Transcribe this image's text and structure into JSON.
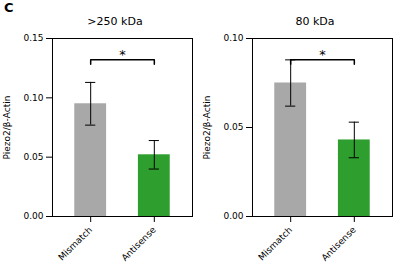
{
  "title": "C",
  "chart_data": [
    {
      "type": "bar",
      "title": ">250 kDa",
      "categories": [
        "Mismatch",
        "Antisense"
      ],
      "values": [
        0.095,
        0.052
      ],
      "errors": [
        0.018,
        0.012
      ],
      "colors": [
        "#a8a8a8",
        "#2e9e2e"
      ],
      "ylim": [
        0.0,
        0.15
      ],
      "yticks": [
        {
          "value": 0,
          "label": "0.00"
        },
        0.05,
        {
          "value": 0.1,
          "label": "0.10"
        },
        0.15
      ],
      "ylabel": "Piezo2/β-Actin",
      "annotations": [
        {
          "text": "*",
          "y": 0.132
        }
      ]
    },
    {
      "type": "bar",
      "title": "80 kDa",
      "categories": [
        "Mismatch",
        "Antisense"
      ],
      "values": [
        0.075,
        0.043
      ],
      "errors": [
        0.013,
        0.01
      ],
      "colors": [
        "#a8a8a8",
        "#2e9e2e"
      ],
      "ylim": [
        0.0,
        0.1
      ],
      "yticks": [
        {
          "value": 0,
          "label": "0.00"
        },
        0.05,
        {
          "value": 0.1,
          "label": "0.10"
        }
      ],
      "ylabel": "Piezo2/β-Actin",
      "annotations": [
        {
          "text": "*",
          "y": 0.088
        }
      ]
    }
  ]
}
